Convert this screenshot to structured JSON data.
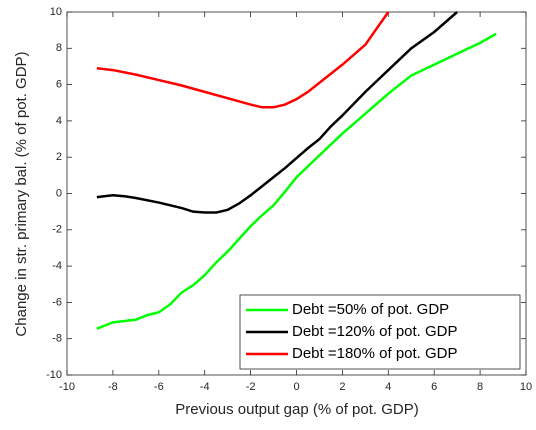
{
  "chart_data": {
    "type": "line",
    "xlabel": "Previous output gap (% of pot. GDP)",
    "ylabel": "Change in str. primary bal. (% of pot. GDP)",
    "xlim": [
      -10,
      10
    ],
    "xticks": [
      -10,
      -8,
      -6,
      -4,
      -2,
      0,
      2,
      4,
      6,
      8,
      10
    ],
    "ylim": [
      -10,
      10
    ],
    "yticks": [
      -10,
      -8,
      -6,
      -4,
      -2,
      0,
      2,
      4,
      6,
      8,
      10
    ],
    "legend": "lower right",
    "grid": false,
    "series": [
      {
        "name": "Debt =50% of pot. GDP",
        "color": "#00ff00",
        "x": [
          -8.7,
          -8,
          -7,
          -6.5,
          -6,
          -5.5,
          -5,
          -4.5,
          -4,
          -3.5,
          -3,
          -2.5,
          -2,
          -1.5,
          -1,
          -0.5,
          0,
          0.5,
          1,
          2,
          3,
          4,
          5,
          6,
          7,
          8,
          8.7
        ],
        "values": [
          -7.45,
          -7.1,
          -6.95,
          -6.7,
          -6.55,
          -6.1,
          -5.45,
          -5.05,
          -4.5,
          -3.8,
          -3.2,
          -2.5,
          -1.8,
          -1.2,
          -0.65,
          0.1,
          0.9,
          1.5,
          2.1,
          3.3,
          4.4,
          5.5,
          6.5,
          7.1,
          7.7,
          8.3,
          8.8
        ]
      },
      {
        "name": "Debt =120% of pot. GDP",
        "color": "#000000",
        "x": [
          -8.7,
          -8,
          -7.5,
          -7,
          -6,
          -5,
          -4.5,
          -4,
          -3.5,
          -3,
          -2.5,
          -2,
          -1.5,
          -1,
          -0.5,
          0,
          0.5,
          1,
          1.5,
          2,
          3,
          4,
          5,
          6,
          7
        ],
        "values": [
          -0.2,
          -0.1,
          -0.15,
          -0.25,
          -0.5,
          -0.8,
          -1.0,
          -1.05,
          -1.05,
          -0.9,
          -0.55,
          -0.1,
          0.4,
          0.9,
          1.4,
          1.95,
          2.5,
          3.0,
          3.7,
          4.3,
          5.6,
          6.8,
          8.0,
          8.9,
          10
        ]
      },
      {
        "name": "Debt =180% of pot. GDP",
        "color": "#ff0000",
        "x": [
          -8.7,
          -8,
          -7,
          -6,
          -5,
          -4,
          -3,
          -2,
          -1.5,
          -1,
          -0.5,
          0,
          0.5,
          1,
          2,
          3,
          4
        ],
        "values": [
          6.9,
          6.8,
          6.55,
          6.25,
          5.95,
          5.6,
          5.25,
          4.9,
          4.75,
          4.75,
          4.9,
          5.2,
          5.6,
          6.1,
          7.1,
          8.2,
          10
        ]
      }
    ]
  }
}
